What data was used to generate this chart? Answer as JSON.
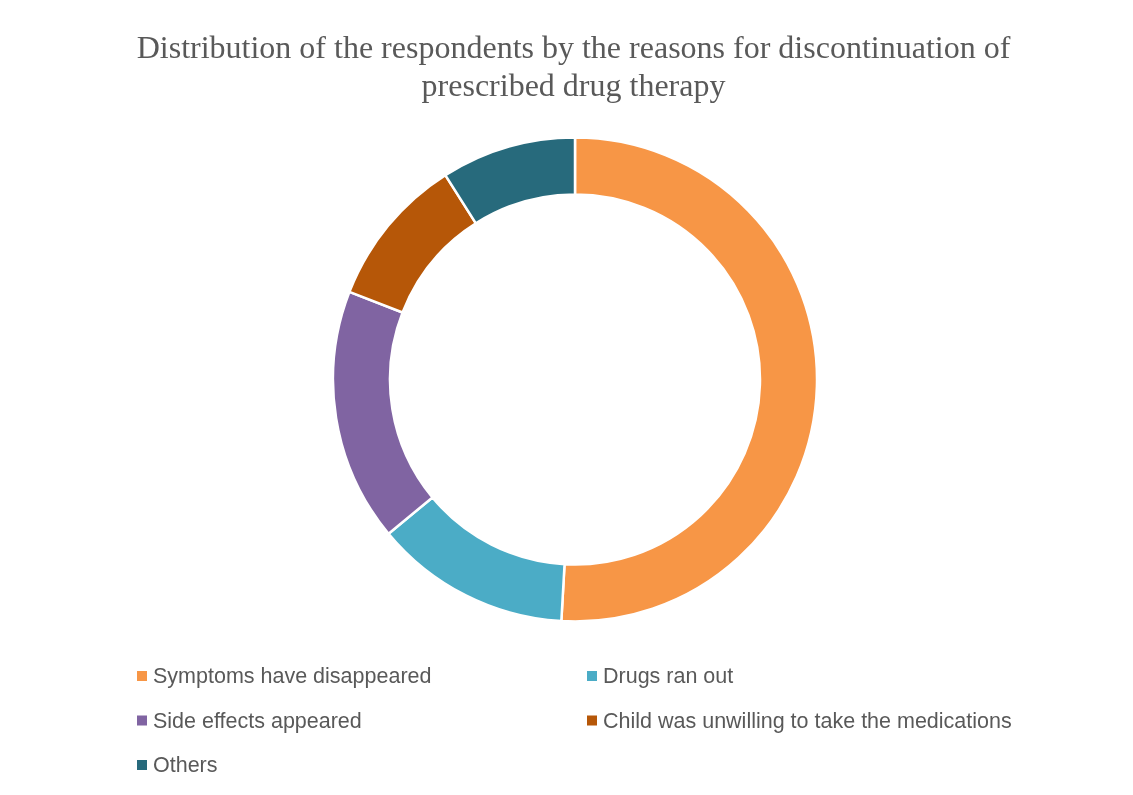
{
  "chart_data": {
    "type": "donut",
    "title": "Distribution of the respondents by the reasons for discontinuation of prescribed drug therapy",
    "categories": [
      "Symptoms have disappeared",
      "Drugs ran out",
      "Side effects appeared",
      "Child was unwilling to take the medications",
      "Others"
    ],
    "values": [
      50.9,
      13.1,
      16.9,
      10.1,
      9.0
    ],
    "colors": [
      "#f79646",
      "#4bacc6",
      "#8064a2",
      "#b65708",
      "#276a7c"
    ],
    "legend": "bottom"
  }
}
